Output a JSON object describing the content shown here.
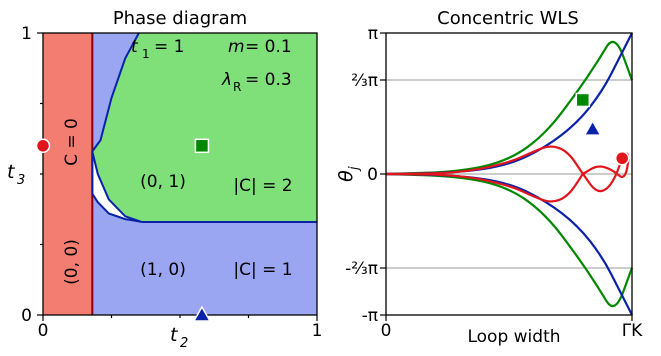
{
  "colors": {
    "c0": "#f47d72",
    "c1": "#9aa6f2",
    "c2": "#7fe07a",
    "green": "#008800",
    "blue": "#0a22a8",
    "red": "#e0161c",
    "darkred": "#8b0000",
    "grid": "#9a9a9a"
  },
  "chart_data": [
    {
      "type": "heatmap",
      "title": "Phase diagram",
      "xlabel": "t",
      "xlabel_sub": "2",
      "ylabel": "t",
      "ylabel_sub": "3",
      "xlim": [
        0,
        1
      ],
      "ylim": [
        0,
        1
      ],
      "x_ticks": [
        "0",
        "1"
      ],
      "y_ticks": [
        "0",
        "1"
      ],
      "params": [
        {
          "name": "t",
          "sub": "1",
          "value": "= 1"
        },
        {
          "name": "m",
          "sub": "",
          "value": "= 0.1"
        },
        {
          "name": "λ",
          "sub": "R",
          "value": "= 0.3"
        }
      ],
      "regions": [
        {
          "label": "C = 0",
          "index": "(0, 0)",
          "x_range": [
            0,
            0.18
          ]
        },
        {
          "label": "|C| = 1",
          "index": "(1, 0)",
          "y_range": [
            0,
            0.33
          ]
        },
        {
          "label": "|C| = 2",
          "index": "(0, 1)",
          "y_range": [
            0.33,
            1
          ]
        }
      ],
      "boundaries": {
        "vertical_x": 0.18,
        "horizontal_y": 0.33,
        "right_curve": [
          [
            0.18,
            0.58
          ],
          [
            0.21,
            0.62
          ],
          [
            0.25,
            0.77
          ],
          [
            0.3,
            0.91
          ],
          [
            0.35,
            1.0
          ]
        ],
        "lower_curve": [
          [
            0.18,
            0.58
          ],
          [
            0.2,
            0.5
          ],
          [
            0.24,
            0.41
          ],
          [
            0.3,
            0.35
          ],
          [
            0.36,
            0.33
          ]
        ],
        "white_region_top": [
          [
            0.18,
            0.58
          ],
          [
            0.18,
            0.43
          ],
          [
            0.2,
            0.4
          ],
          [
            0.24,
            0.36
          ],
          [
            0.3,
            0.34
          ],
          [
            0.36,
            0.33
          ]
        ]
      },
      "markers": [
        {
          "shape": "circle",
          "color": "red",
          "x": 0.0,
          "y": 0.6
        },
        {
          "shape": "square",
          "color": "green",
          "x": 0.58,
          "y": 0.6
        },
        {
          "shape": "triangle",
          "color": "blue",
          "x": 0.58,
          "y": 0.0
        }
      ]
    },
    {
      "type": "line",
      "title": "Concentric WLS",
      "xlabel": "Loop width",
      "ylabel": "θ",
      "ylabel_sub": "j",
      "x_ticks": [
        "0",
        "ΓK"
      ],
      "xlim": [
        0,
        1
      ],
      "ylim": [
        -3.1416,
        3.1416
      ],
      "y_ticks": [
        "π",
        "⅔π",
        "0",
        "-⅔π",
        "-π"
      ],
      "y_tick_values": [
        3.1416,
        2.0944,
        0,
        -2.0944,
        -3.1416
      ],
      "series": [
        {
          "color": "green",
          "values": [
            [
              0,
              0
            ],
            [
              0.3,
              0.05
            ],
            [
              0.5,
              0.3
            ],
            [
              0.65,
              0.9
            ],
            [
              0.78,
              1.85
            ],
            [
              0.86,
              2.5
            ],
            [
              0.93,
              3.1416
            ],
            [
              1.0,
              2.09
            ]
          ]
        },
        {
          "color": "green",
          "values": [
            [
              0,
              0
            ],
            [
              0.3,
              -0.05
            ],
            [
              0.5,
              -0.3
            ],
            [
              0.65,
              -0.9
            ],
            [
              0.78,
              -1.85
            ],
            [
              0.86,
              -2.5
            ],
            [
              0.93,
              -3.1416
            ],
            [
              1.0,
              -2.09
            ]
          ]
        },
        {
          "color": "blue",
          "values": [
            [
              0,
              0
            ],
            [
              0.3,
              0.03
            ],
            [
              0.5,
              0.2
            ],
            [
              0.65,
              0.6
            ],
            [
              0.78,
              1.15
            ],
            [
              0.88,
              1.85
            ],
            [
              0.95,
              2.6
            ],
            [
              1.0,
              3.1416
            ]
          ]
        },
        {
          "color": "blue",
          "values": [
            [
              0,
              0
            ],
            [
              0.3,
              -0.03
            ],
            [
              0.5,
              -0.2
            ],
            [
              0.65,
              -0.6
            ],
            [
              0.78,
              -1.15
            ],
            [
              0.88,
              -1.85
            ],
            [
              0.95,
              -2.6
            ],
            [
              1.0,
              -3.1416
            ]
          ]
        },
        {
          "color": "red",
          "values": [
            [
              0,
              0
            ],
            [
              0.3,
              0.02
            ],
            [
              0.5,
              0.25
            ],
            [
              0.6,
              0.5
            ],
            [
              0.67,
              0.65
            ],
            [
              0.74,
              0.5
            ],
            [
              0.8,
              0.0
            ],
            [
              0.86,
              -0.45
            ],
            [
              0.92,
              -0.25
            ],
            [
              0.97,
              0.5
            ],
            [
              0.99,
              0.4
            ],
            [
              0.97,
              -0.15
            ],
            [
              0.92,
              0.1
            ],
            [
              0.86,
              0.2
            ],
            [
              0.8,
              0.0
            ]
          ]
        },
        {
          "color": "red",
          "values": [
            [
              0,
              0
            ],
            [
              0.3,
              -0.02
            ],
            [
              0.5,
              -0.25
            ],
            [
              0.6,
              -0.5
            ],
            [
              0.67,
              -0.65
            ],
            [
              0.74,
              -0.5
            ],
            [
              0.8,
              0.0
            ]
          ]
        }
      ],
      "markers": [
        {
          "shape": "square",
          "color": "green",
          "x": 0.8,
          "y": 1.65
        },
        {
          "shape": "triangle",
          "color": "blue",
          "x": 0.84,
          "y": 1.0
        },
        {
          "shape": "circle",
          "color": "red",
          "x": 0.96,
          "y": 0.35
        }
      ]
    }
  ]
}
